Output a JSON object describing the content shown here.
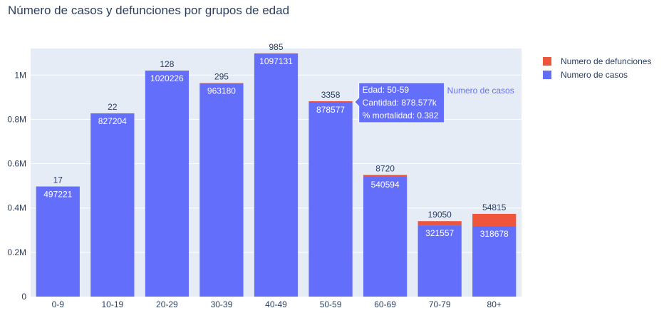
{
  "title": "Número de casos y defunciones por grupos de edad",
  "colors": {
    "plot_bg": "#e5ecf6",
    "grid": "#ffffff",
    "casos": "#636efa",
    "defunciones": "#ef553b",
    "text": "#2a3f5f"
  },
  "chart_data": {
    "type": "bar",
    "barmode": "stack",
    "categories": [
      "0-9",
      "10-19",
      "20-29",
      "30-39",
      "40-49",
      "50-59",
      "60-69",
      "70-79",
      "80+"
    ],
    "series": [
      {
        "name": "Numero de casos",
        "values": [
          497221,
          827204,
          1020226,
          963180,
          1097131,
          878577,
          540594,
          321557,
          318678
        ]
      },
      {
        "name": "Numero de defunciones",
        "values": [
          17,
          22,
          128,
          295,
          985,
          3358,
          8720,
          19050,
          54815
        ]
      }
    ],
    "ylim": [
      0,
      1120000
    ],
    "yticks": [
      0,
      200000,
      400000,
      600000,
      800000,
      1000000
    ],
    "ytick_labels": [
      "0",
      "0.2M",
      "0.4M",
      "0.6M",
      "0.8M",
      "1M"
    ],
    "legend": [
      "Numero de defunciones",
      "Numero de casos"
    ],
    "legend_position": "top-right",
    "grid": true,
    "tooltip": {
      "category": "50-59",
      "lines": [
        "Edad: 50-59",
        "Cantidad: 878.577k",
        "% mortalidad: 0.382"
      ],
      "series_name": "Numero de casos"
    }
  }
}
